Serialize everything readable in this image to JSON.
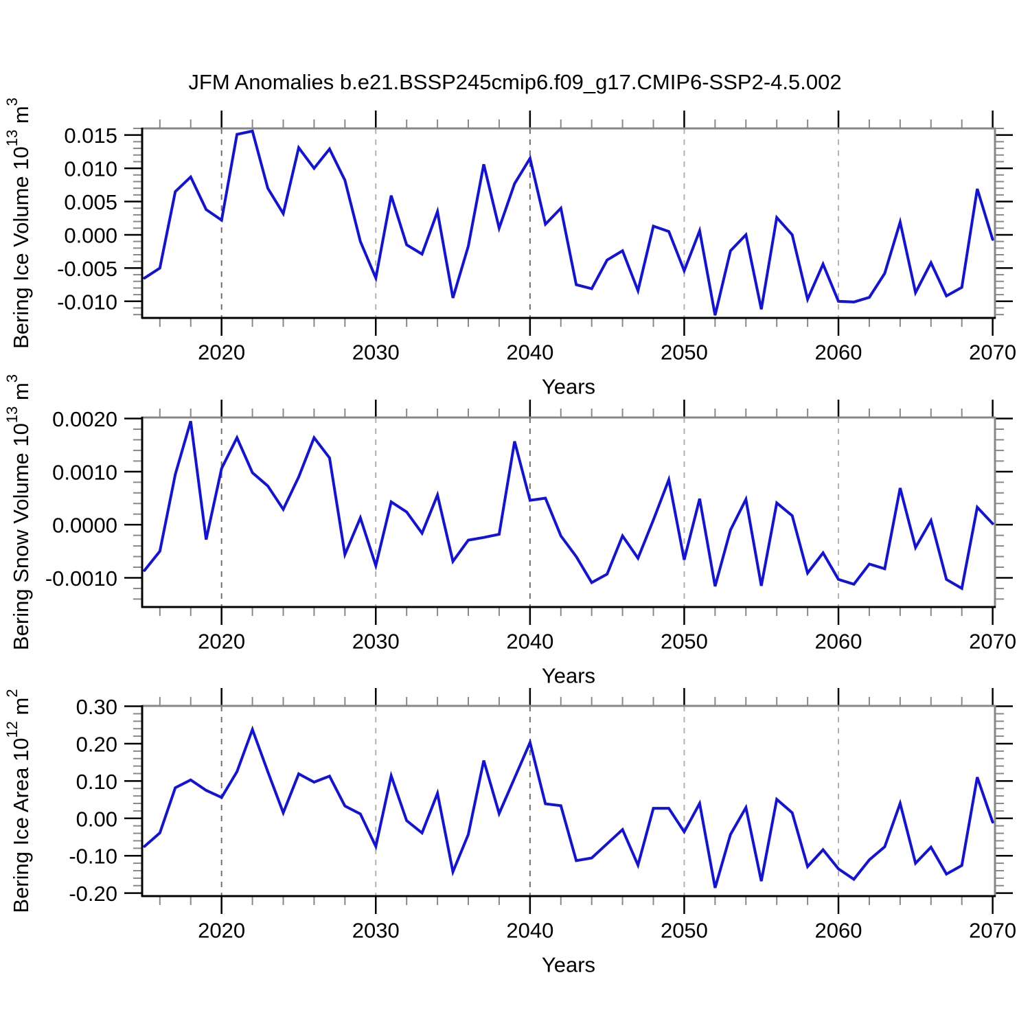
{
  "title": "JFM Anomalies b.e21.BSSP245cmip6.f09_g17.CMIP6-SSP2-4.5.002",
  "colors": {
    "line": "#1212dd",
    "axis": "#000000",
    "axis_top_right": "#878787",
    "grid_dark": "#6e6e6e",
    "grid_light": "#b2b2b2",
    "minor_tick": "#888888",
    "major_tick": "#000000",
    "text": "#000000"
  },
  "x_axis": {
    "label": "Years",
    "range": [
      2014.85,
      2070.15
    ],
    "major_ticks": [
      {
        "year": 2020,
        "label": "2020"
      },
      {
        "year": 2030,
        "label": "2030"
      },
      {
        "year": 2040,
        "label": "2040"
      },
      {
        "year": 2050,
        "label": "2050"
      },
      {
        "year": 2060,
        "label": "2060"
      },
      {
        "year": 2070,
        "label": "2070"
      }
    ],
    "minor_tick_years": [
      2016,
      2018,
      2022,
      2024,
      2026,
      2028,
      2032,
      2034,
      2036,
      2038,
      2042,
      2044,
      2046,
      2048,
      2052,
      2054,
      2056,
      2058,
      2062,
      2064,
      2066,
      2068
    ],
    "gridlines": [
      {
        "year": 2020,
        "shade": "dark"
      },
      {
        "year": 2030,
        "shade": "light"
      },
      {
        "year": 2040,
        "shade": "dark"
      },
      {
        "year": 2050,
        "shade": "light"
      },
      {
        "year": 2060,
        "shade": "light"
      }
    ]
  },
  "chart_data": [
    {
      "type": "line",
      "name": "bering-ice-volume",
      "ylabel": {
        "text": "Bering Ice Volume",
        "base": "10",
        "exponent": "13",
        "unit": "m",
        "unit_exponent": "3"
      },
      "ylim": [
        -0.0125,
        0.016
      ],
      "ymajor": [
        {
          "v": -0.01,
          "label": "-0.010"
        },
        {
          "v": -0.005,
          "label": "-0.005"
        },
        {
          "v": 0.0,
          "label": "0.000"
        },
        {
          "v": 0.005,
          "label": "0.005"
        },
        {
          "v": 0.01,
          "label": "0.010"
        },
        {
          "v": 0.015,
          "label": "0.015"
        }
      ],
      "yminor_step": 0.001,
      "yminor_range": [
        -0.012,
        0.016
      ],
      "x": [
        2015,
        2016,
        2017,
        2018,
        2019,
        2020,
        2021,
        2022,
        2023,
        2024,
        2025,
        2026,
        2027,
        2028,
        2029,
        2030,
        2031,
        2032,
        2033,
        2034,
        2035,
        2036,
        2037,
        2038,
        2039,
        2040,
        2041,
        2042,
        2043,
        2044,
        2045,
        2046,
        2047,
        2048,
        2049,
        2050,
        2051,
        2052,
        2053,
        2054,
        2055,
        2056,
        2057,
        2058,
        2059,
        2060,
        2061,
        2062,
        2063,
        2064,
        2065,
        2066,
        2067,
        2068,
        2069,
        2070
      ],
      "values": [
        -0.0065,
        -0.005,
        0.0065,
        0.0087,
        0.0038,
        0.0022,
        0.0151,
        0.0156,
        0.007,
        0.0032,
        0.0131,
        0.01,
        0.0129,
        0.0082,
        -0.001,
        -0.0065,
        0.0059,
        -0.0015,
        -0.0029,
        0.0035,
        -0.0095,
        -0.0017,
        0.0106,
        0.001,
        0.0077,
        0.0115,
        0.0016,
        0.004,
        -0.0075,
        -0.0081,
        -0.0038,
        -0.0024,
        -0.0084,
        0.0013,
        0.0005,
        -0.0054,
        0.0006,
        -0.0121,
        -0.0024,
        0.0,
        -0.0112,
        0.0026,
        0.0,
        -0.0097,
        -0.0044,
        -0.01,
        -0.0101,
        -0.0094,
        -0.0058,
        0.0019,
        -0.0087,
        -0.0042,
        -0.0092,
        -0.0079,
        0.0069,
        -0.0007
      ]
    },
    {
      "type": "line",
      "name": "bering-snow-volume",
      "ylabel": {
        "text": "Bering Snow Volume",
        "base": "10",
        "exponent": "13",
        "unit": "m",
        "unit_exponent": "3"
      },
      "ylim": [
        -0.00155,
        0.00202
      ],
      "ymajor": [
        {
          "v": -0.001,
          "label": "-0.0010"
        },
        {
          "v": 0.0,
          "label": "0.0000"
        },
        {
          "v": 0.001,
          "label": "0.0010"
        },
        {
          "v": 0.002,
          "label": "0.0020"
        }
      ],
      "yminor_step": 0.0002,
      "yminor_range": [
        -0.0014,
        0.002
      ],
      "x": [
        2015,
        2016,
        2017,
        2018,
        2019,
        2020,
        2021,
        2022,
        2023,
        2024,
        2025,
        2026,
        2027,
        2028,
        2029,
        2030,
        2031,
        2032,
        2033,
        2034,
        2035,
        2036,
        2037,
        2038,
        2039,
        2040,
        2041,
        2042,
        2043,
        2044,
        2045,
        2046,
        2047,
        2048,
        2049,
        2050,
        2051,
        2052,
        2053,
        2054,
        2055,
        2056,
        2057,
        2058,
        2059,
        2060,
        2061,
        2062,
        2063,
        2064,
        2065,
        2066,
        2067,
        2068,
        2069,
        2070
      ],
      "values": [
        -0.00086,
        -0.0005,
        0.00095,
        0.00195,
        -0.00028,
        0.00106,
        0.00164,
        0.00098,
        0.00073,
        0.00029,
        0.0009,
        0.00164,
        0.00126,
        -0.00056,
        0.00013,
        -0.00077,
        0.00043,
        0.00024,
        -0.00016,
        0.00056,
        -0.00069,
        -0.00029,
        -0.00024,
        -0.00018,
        0.00157,
        0.00046,
        0.0005,
        -0.00021,
        -0.0006,
        -0.00109,
        -0.00093,
        -0.00021,
        -0.00063,
        9e-05,
        0.00085,
        -0.00066,
        0.00049,
        -0.00116,
        -0.0001,
        0.00048,
        -0.00115,
        0.00041,
        0.00017,
        -0.00091,
        -0.00053,
        -0.00103,
        -0.00112,
        -0.00074,
        -0.00083,
        0.00069,
        -0.00043,
        8e-05,
        -0.00103,
        -0.0012,
        0.00033,
        2e-05
      ]
    },
    {
      "type": "line",
      "name": "bering-ice-area",
      "ylabel": {
        "text": "Bering Ice Area",
        "base": "10",
        "exponent": "12",
        "unit": "m",
        "unit_exponent": "2"
      },
      "ylim": [
        -0.208,
        0.301
      ],
      "ymajor": [
        {
          "v": -0.2,
          "label": "-0.20"
        },
        {
          "v": -0.1,
          "label": "-0.10"
        },
        {
          "v": 0.0,
          "label": "0.00"
        },
        {
          "v": 0.1,
          "label": "0.10"
        },
        {
          "v": 0.2,
          "label": "0.20"
        },
        {
          "v": 0.3,
          "label": "0.30"
        }
      ],
      "yminor_step": 0.02,
      "yminor_range": [
        -0.2,
        0.3
      ],
      "x": [
        2015,
        2016,
        2017,
        2018,
        2019,
        2020,
        2021,
        2022,
        2023,
        2024,
        2025,
        2026,
        2027,
        2028,
        2029,
        2030,
        2031,
        2032,
        2033,
        2034,
        2035,
        2036,
        2037,
        2038,
        2039,
        2040,
        2041,
        2042,
        2043,
        2044,
        2045,
        2046,
        2047,
        2048,
        2049,
        2050,
        2051,
        2052,
        2053,
        2054,
        2055,
        2056,
        2057,
        2058,
        2059,
        2060,
        2061,
        2062,
        2063,
        2064,
        2065,
        2066,
        2067,
        2068,
        2069,
        2070
      ],
      "values": [
        -0.075,
        -0.039,
        0.082,
        0.103,
        0.075,
        0.056,
        0.125,
        0.238,
        0.125,
        0.015,
        0.119,
        0.097,
        0.113,
        0.033,
        0.012,
        -0.075,
        0.114,
        -0.006,
        -0.039,
        0.067,
        -0.143,
        -0.043,
        0.155,
        0.013,
        0.108,
        0.203,
        0.039,
        0.034,
        -0.113,
        -0.106,
        -0.068,
        -0.03,
        -0.125,
        0.027,
        0.027,
        -0.036,
        0.04,
        -0.186,
        -0.043,
        0.029,
        -0.168,
        0.051,
        0.015,
        -0.129,
        -0.084,
        -0.135,
        -0.163,
        -0.111,
        -0.076,
        0.04,
        -0.12,
        -0.077,
        -0.149,
        -0.126,
        0.11,
        -0.01
      ]
    }
  ]
}
